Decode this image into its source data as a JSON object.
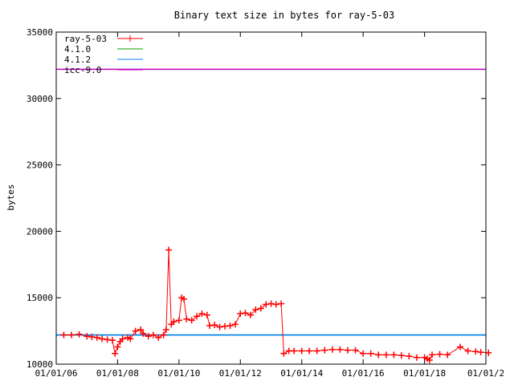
{
  "chart_data": {
    "type": "line",
    "title": "Binary text size in bytes for ray-5-03",
    "xlabel": "",
    "ylabel": "bytes",
    "x_is_date": true,
    "xlim": [
      "2006-01-01",
      "2020-01-01"
    ],
    "ylim": [
      10000,
      35000
    ],
    "yticks": [
      10000,
      15000,
      20000,
      25000,
      30000,
      35000
    ],
    "xticks": [
      {
        "date": "2006-01-01",
        "label": "01/01/06"
      },
      {
        "date": "2008-01-01",
        "label": "01/01/08"
      },
      {
        "date": "2010-01-01",
        "label": "01/01/10"
      },
      {
        "date": "2012-01-01",
        "label": "01/01/12"
      },
      {
        "date": "2014-01-01",
        "label": "01/01/14"
      },
      {
        "date": "2016-01-01",
        "label": "01/01/16"
      },
      {
        "date": "2018-01-01",
        "label": "01/01/18"
      },
      {
        "date": "2020-01-01",
        "label": "01/01/2"
      }
    ],
    "grid": false,
    "legend_position": "top-left",
    "series": [
      {
        "name": "ray-5-03",
        "color": "#ff0000",
        "marker": "plus",
        "points": [
          [
            "2006-04-01",
            12200
          ],
          [
            "2006-07-01",
            12200
          ],
          [
            "2006-10-01",
            12250
          ],
          [
            "2007-01-01",
            12100
          ],
          [
            "2007-03-01",
            12050
          ],
          [
            "2007-05-01",
            12000
          ],
          [
            "2007-07-01",
            11900
          ],
          [
            "2007-09-01",
            11850
          ],
          [
            "2007-11-01",
            11800
          ],
          [
            "2007-12-01",
            10800
          ],
          [
            "2008-01-01",
            11300
          ],
          [
            "2008-02-01",
            11700
          ],
          [
            "2008-03-01",
            11900
          ],
          [
            "2008-05-01",
            12000
          ],
          [
            "2008-06-01",
            11900
          ],
          [
            "2008-08-01",
            12500
          ],
          [
            "2008-10-01",
            12600
          ],
          [
            "2008-11-01",
            12300
          ],
          [
            "2009-01-01",
            12100
          ],
          [
            "2009-03-01",
            12200
          ],
          [
            "2009-05-01",
            12000
          ],
          [
            "2009-07-01",
            12200
          ],
          [
            "2009-08-01",
            12600
          ],
          [
            "2009-09-01",
            18600
          ],
          [
            "2009-10-01",
            13000
          ],
          [
            "2009-11-01",
            13200
          ],
          [
            "2010-01-01",
            13300
          ],
          [
            "2010-02-01",
            15000
          ],
          [
            "2010-03-01",
            14900
          ],
          [
            "2010-04-01",
            13400
          ],
          [
            "2010-06-01",
            13300
          ],
          [
            "2010-08-01",
            13600
          ],
          [
            "2010-10-01",
            13800
          ],
          [
            "2010-12-01",
            13700
          ],
          [
            "2011-01-01",
            12900
          ],
          [
            "2011-03-01",
            12950
          ],
          [
            "2011-05-01",
            12800
          ],
          [
            "2011-07-01",
            12850
          ],
          [
            "2011-09-01",
            12900
          ],
          [
            "2011-11-01",
            13000
          ],
          [
            "2012-01-01",
            13800
          ],
          [
            "2012-03-01",
            13850
          ],
          [
            "2012-05-01",
            13700
          ],
          [
            "2012-07-01",
            14100
          ],
          [
            "2012-09-01",
            14200
          ],
          [
            "2012-11-01",
            14500
          ],
          [
            "2013-01-01",
            14550
          ],
          [
            "2013-03-01",
            14500
          ],
          [
            "2013-05-01",
            14550
          ],
          [
            "2013-06-01",
            10800
          ],
          [
            "2013-08-01",
            11000
          ],
          [
            "2013-10-01",
            11000
          ],
          [
            "2014-01-01",
            11000
          ],
          [
            "2014-04-01",
            11000
          ],
          [
            "2014-07-01",
            11000
          ],
          [
            "2014-10-01",
            11050
          ],
          [
            "2015-01-01",
            11100
          ],
          [
            "2015-04-01",
            11100
          ],
          [
            "2015-07-01",
            11050
          ],
          [
            "2015-10-01",
            11050
          ],
          [
            "2016-01-01",
            10800
          ],
          [
            "2016-04-01",
            10800
          ],
          [
            "2016-07-01",
            10700
          ],
          [
            "2016-10-01",
            10700
          ],
          [
            "2017-01-01",
            10700
          ],
          [
            "2017-04-01",
            10650
          ],
          [
            "2017-07-01",
            10600
          ],
          [
            "2017-10-01",
            10500
          ],
          [
            "2018-01-01",
            10500
          ],
          [
            "2018-02-01",
            10400
          ],
          [
            "2018-03-01",
            10300
          ],
          [
            "2018-04-01",
            10700
          ],
          [
            "2018-07-01",
            10750
          ],
          [
            "2018-10-01",
            10700
          ],
          [
            "2019-03-01",
            11300
          ],
          [
            "2019-06-01",
            11000
          ],
          [
            "2019-09-01",
            10950
          ],
          [
            "2019-11-01",
            10900
          ],
          [
            "2020-02-01",
            10850
          ]
        ]
      },
      {
        "name": "4.1.0",
        "color": "#00a000",
        "marker": "none",
        "points": [
          [
            "2006-01-01",
            12200
          ],
          [
            "2020-01-01",
            12200
          ]
        ]
      },
      {
        "name": "4.1.2",
        "color": "#0080ff",
        "marker": "none",
        "points": [
          [
            "2006-01-01",
            12200
          ],
          [
            "2020-01-01",
            12200
          ]
        ]
      },
      {
        "name": "icc-9.0",
        "color": "#c000c0",
        "marker": "none",
        "points": [
          [
            "2006-01-01",
            32200
          ],
          [
            "2020-01-01",
            32200
          ]
        ]
      }
    ]
  }
}
